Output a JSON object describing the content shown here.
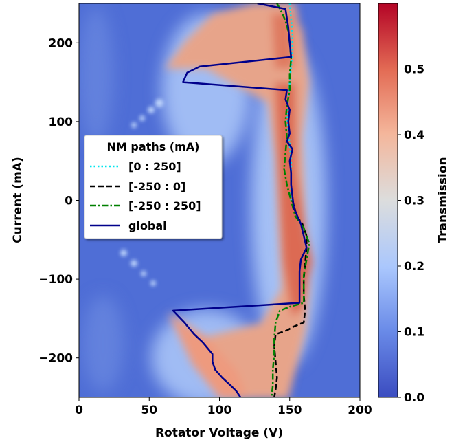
{
  "chart_data": {
    "type": "heatmap",
    "xlabel": "Rotator Voltage (V)",
    "ylabel": "Current (mA)",
    "colorbar_label": "Transmission",
    "xlim": [
      0,
      200
    ],
    "ylim": [
      -250,
      250
    ],
    "x_ticks": [
      "0",
      "50",
      "100",
      "150",
      "200"
    ],
    "y_ticks": [
      "−200",
      "−100",
      "0",
      "100",
      "200"
    ],
    "colorbar_range": [
      0,
      0.6
    ],
    "colorbar_ticks": [
      "0.0",
      "0.1",
      "0.2",
      "0.3",
      "0.4",
      "0.5"
    ],
    "colormap": "coolwarm",
    "grid": false,
    "legend_position": "upper-left",
    "legend": {
      "title": "NM paths (mA)",
      "entries": [
        "[0 : 250]",
        "[-250 : 0]",
        "[-250 : 250]",
        "global"
      ]
    },
    "series": [
      {
        "name": "[0 : 250]",
        "color": "#00e5ee",
        "style": "dotted",
        "points": [
          [
            150,
            250
          ],
          [
            151,
            230
          ],
          [
            152,
            210
          ],
          [
            152,
            190
          ],
          [
            151,
            170
          ],
          [
            150,
            150
          ],
          [
            149,
            130
          ],
          [
            148,
            110
          ],
          [
            149,
            90
          ],
          [
            150,
            70
          ],
          [
            151,
            50
          ],
          [
            151,
            30
          ],
          [
            151,
            10
          ],
          [
            151,
            0
          ]
        ]
      },
      {
        "name": "[-250 : 0]",
        "color": "#000000",
        "style": "dashed",
        "points": [
          [
            152,
            0
          ],
          [
            155,
            -20
          ],
          [
            159,
            -30
          ],
          [
            162,
            -45
          ],
          [
            162,
            -60
          ],
          [
            161,
            -80
          ],
          [
            160,
            -100
          ],
          [
            160,
            -120
          ],
          [
            161,
            -140
          ],
          [
            160,
            -155
          ],
          [
            153,
            -160
          ],
          [
            148,
            -165
          ],
          [
            140,
            -170
          ],
          [
            139,
            -185
          ],
          [
            140,
            -205
          ],
          [
            141,
            -225
          ],
          [
            140,
            -240
          ],
          [
            139,
            -250
          ]
        ]
      },
      {
        "name": "[-250 : 250]",
        "color": "#008000",
        "style": "dashdot",
        "points": [
          [
            141,
            250
          ],
          [
            144,
            240
          ],
          [
            147,
            228
          ],
          [
            149,
            215
          ],
          [
            150,
            200
          ],
          [
            151,
            180
          ],
          [
            150,
            160
          ],
          [
            150,
            140
          ],
          [
            148,
            120
          ],
          [
            147,
            100
          ],
          [
            148,
            80
          ],
          [
            147,
            60
          ],
          [
            146,
            40
          ],
          [
            148,
            20
          ],
          [
            151,
            0
          ],
          [
            154,
            -20
          ],
          [
            160,
            -35
          ],
          [
            164,
            -55
          ],
          [
            162,
            -75
          ],
          [
            160,
            -95
          ],
          [
            160,
            -115
          ],
          [
            160,
            -130
          ],
          [
            150,
            -135
          ],
          [
            143,
            -140
          ],
          [
            140,
            -155
          ],
          [
            139,
            -175
          ],
          [
            139,
            -195
          ],
          [
            138,
            -215
          ],
          [
            138,
            -235
          ],
          [
            137,
            -250
          ]
        ]
      },
      {
        "name": "global",
        "color": "#00008b",
        "style": "solid",
        "points": [
          [
            127,
            250
          ],
          [
            147,
            243
          ],
          [
            149,
            220
          ],
          [
            150,
            200
          ],
          [
            151,
            182
          ],
          [
            86,
            170
          ],
          [
            77,
            162
          ],
          [
            74,
            150
          ],
          [
            148,
            140
          ],
          [
            147,
            128
          ],
          [
            150,
            115
          ],
          [
            149,
            100
          ],
          [
            150,
            85
          ],
          [
            148,
            75
          ],
          [
            152,
            65
          ],
          [
            150,
            50
          ],
          [
            151,
            35
          ],
          [
            151,
            20
          ],
          [
            152,
            5
          ],
          [
            153,
            -10
          ],
          [
            158,
            -30
          ],
          [
            160,
            -45
          ],
          [
            162,
            -60
          ],
          [
            158,
            -75
          ],
          [
            157,
            -90
          ],
          [
            157,
            -105
          ],
          [
            157,
            -115
          ],
          [
            157,
            -130
          ],
          [
            67,
            -140
          ],
          [
            75,
            -155
          ],
          [
            82,
            -170
          ],
          [
            88,
            -180
          ],
          [
            95,
            -195
          ],
          [
            95,
            -205
          ],
          [
            97,
            -215
          ],
          [
            102,
            -225
          ],
          [
            108,
            -235
          ],
          [
            112,
            -242
          ],
          [
            115,
            -250
          ]
        ]
      }
    ]
  }
}
